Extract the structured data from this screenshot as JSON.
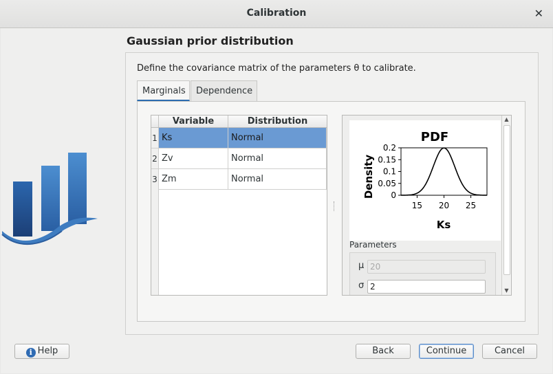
{
  "window": {
    "title": "Calibration",
    "close_glyph": "✕"
  },
  "page": {
    "heading": "Gaussian prior distribution",
    "description": "Define the covariance matrix of the parameters θ to calibrate."
  },
  "tabs": [
    {
      "label": "Marginals",
      "active": true
    },
    {
      "label": "Dependence",
      "active": false
    }
  ],
  "table": {
    "headers": [
      "Variable",
      "Distribution"
    ],
    "rows": [
      {
        "index": "1",
        "variable": "Ks",
        "distribution": "Normal",
        "selected": true
      },
      {
        "index": "2",
        "variable": "Zv",
        "distribution": "Normal",
        "selected": false
      },
      {
        "index": "3",
        "variable": "Zm",
        "distribution": "Normal",
        "selected": false
      }
    ]
  },
  "chart_data": {
    "type": "line",
    "title": "PDF",
    "xlabel": "Ks",
    "ylabel": "Density",
    "xlim": [
      12,
      28
    ],
    "ylim": [
      0,
      0.2
    ],
    "xticks": [
      "15",
      "20",
      "25"
    ],
    "yticks": [
      "0",
      "0.05",
      "0.1",
      "0.15",
      "0.2"
    ],
    "mean": 20,
    "std": 2,
    "line_color": "#000000"
  },
  "parameters": {
    "label": "Parameters",
    "mu": {
      "symbol": "μ",
      "value": "20",
      "disabled": true
    },
    "sigma": {
      "symbol": "σ",
      "value": "2",
      "disabled": false
    }
  },
  "buttons": {
    "help": "Help",
    "back": "Back",
    "continue": "Continue",
    "cancel": "Cancel"
  },
  "colors": {
    "selection": "#6a9ad3",
    "logo_dark": "#1f4e8c",
    "logo_light": "#4f8fd0"
  }
}
